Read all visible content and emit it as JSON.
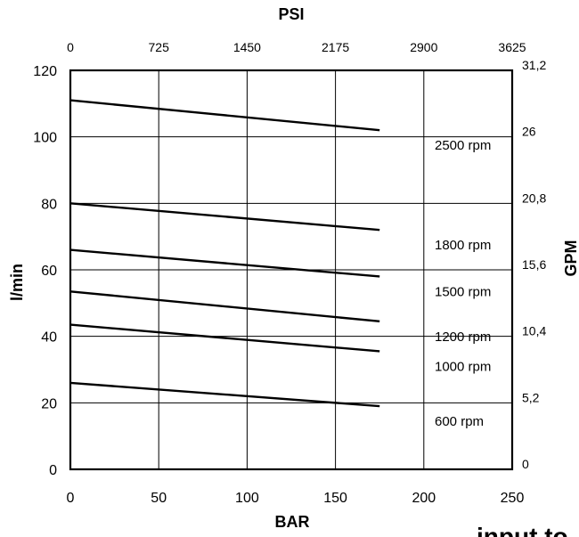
{
  "chart_data": {
    "type": "line",
    "title": "",
    "xlabel": "BAR",
    "ylabel": "l/min",
    "top_axis_label": "PSI",
    "right_axis_label": "GPM",
    "xlim": [
      0,
      250
    ],
    "ylim": [
      0,
      120
    ],
    "x_ticks": [
      "0",
      "50",
      "100",
      "150",
      "200",
      "250"
    ],
    "y_ticks": [
      "0",
      "20",
      "40",
      "60",
      "80",
      "100",
      "120"
    ],
    "top_ticks": [
      "0",
      "725",
      "1450",
      "2175",
      "2900",
      "3625"
    ],
    "right_ticks": [
      "0",
      "5,2",
      "10,4",
      "15,6",
      "20,8",
      "26",
      "31,2"
    ],
    "grid": true,
    "series": [
      {
        "name": "2500 rpm",
        "x": [
          0,
          175
        ],
        "y": [
          111,
          102
        ]
      },
      {
        "name": "1800 rpm",
        "x": [
          0,
          175
        ],
        "y": [
          80,
          72
        ]
      },
      {
        "name": "1500 rpm",
        "x": [
          0,
          175
        ],
        "y": [
          66,
          58
        ]
      },
      {
        "name": "1200 rpm",
        "x": [
          0,
          175
        ],
        "y": [
          53.5,
          44.5
        ]
      },
      {
        "name": "1000 rpm",
        "x": [
          0,
          175
        ],
        "y": [
          43.5,
          35.5
        ]
      },
      {
        "name": "600 rpm",
        "x": [
          0,
          175
        ],
        "y": [
          26,
          19
        ]
      }
    ]
  },
  "footer_text": "input to"
}
